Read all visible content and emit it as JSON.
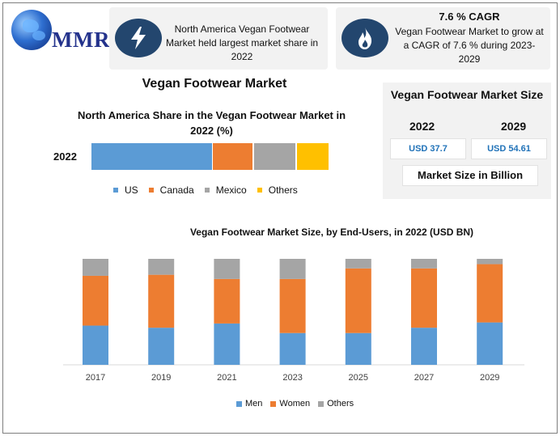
{
  "logo": {
    "text": "MMR",
    "icon": "globe-icon"
  },
  "info_left": {
    "icon": "lightning-icon",
    "text": "North America Vegan Footwear Market held largest market share in 2022"
  },
  "info_right": {
    "icon": "flame-icon",
    "title": "7.6 % CAGR",
    "text": "Vegan Footwear Market to grow at a CAGR of 7.6 % during 2023-2029"
  },
  "main_title": "Vegan Footwear Market",
  "market_size": {
    "title": "Vegan Footwear Market Size",
    "year_a": "2022",
    "year_b": "2029",
    "value_a": "USD 37.7",
    "value_b": "USD 54.61",
    "unit": "Market Size in Billion"
  },
  "colors": {
    "us": "#5b9bd5",
    "canada": "#ed7d31",
    "mexico": "#a5a5a5",
    "others": "#ffc000",
    "icon_circle": "#23466e",
    "value_text": "#2072b8"
  },
  "chart_data": [
    {
      "type": "bar",
      "stacked": "horizontal-100%",
      "title": "North America Share in the Vegan Footwear Market in 2022 (%)",
      "categories": [
        "2022"
      ],
      "series": [
        {
          "name": "US",
          "values": [
            51
          ],
          "color": "#5b9bd5"
        },
        {
          "name": "Canada",
          "values": [
            17
          ],
          "color": "#ed7d31"
        },
        {
          "name": "Mexico",
          "values": [
            18
          ],
          "color": "#a5a5a5"
        },
        {
          "name": "Others",
          "values": [
            14
          ],
          "color": "#ffc000"
        }
      ],
      "legend": "bottom"
    },
    {
      "type": "bar",
      "stacked": "vertical-100%",
      "title": "Vegan Footwear Market Size, by End-Users, in 2022 (USD BN)",
      "categories": [
        "2017",
        "2019",
        "2021",
        "2023",
        "2025",
        "2027",
        "2029"
      ],
      "series": [
        {
          "name": "Men",
          "values": [
            37,
            35,
            39,
            30,
            30,
            35,
            40
          ],
          "color": "#5b9bd5"
        },
        {
          "name": "Women",
          "values": [
            47,
            50,
            42,
            51,
            61,
            56,
            55
          ],
          "color": "#ed7d31"
        },
        {
          "name": "Others",
          "values": [
            16,
            15,
            19,
            19,
            9,
            9,
            5
          ],
          "color": "#a5a5a5"
        }
      ],
      "legend": "bottom",
      "grid": false
    }
  ]
}
